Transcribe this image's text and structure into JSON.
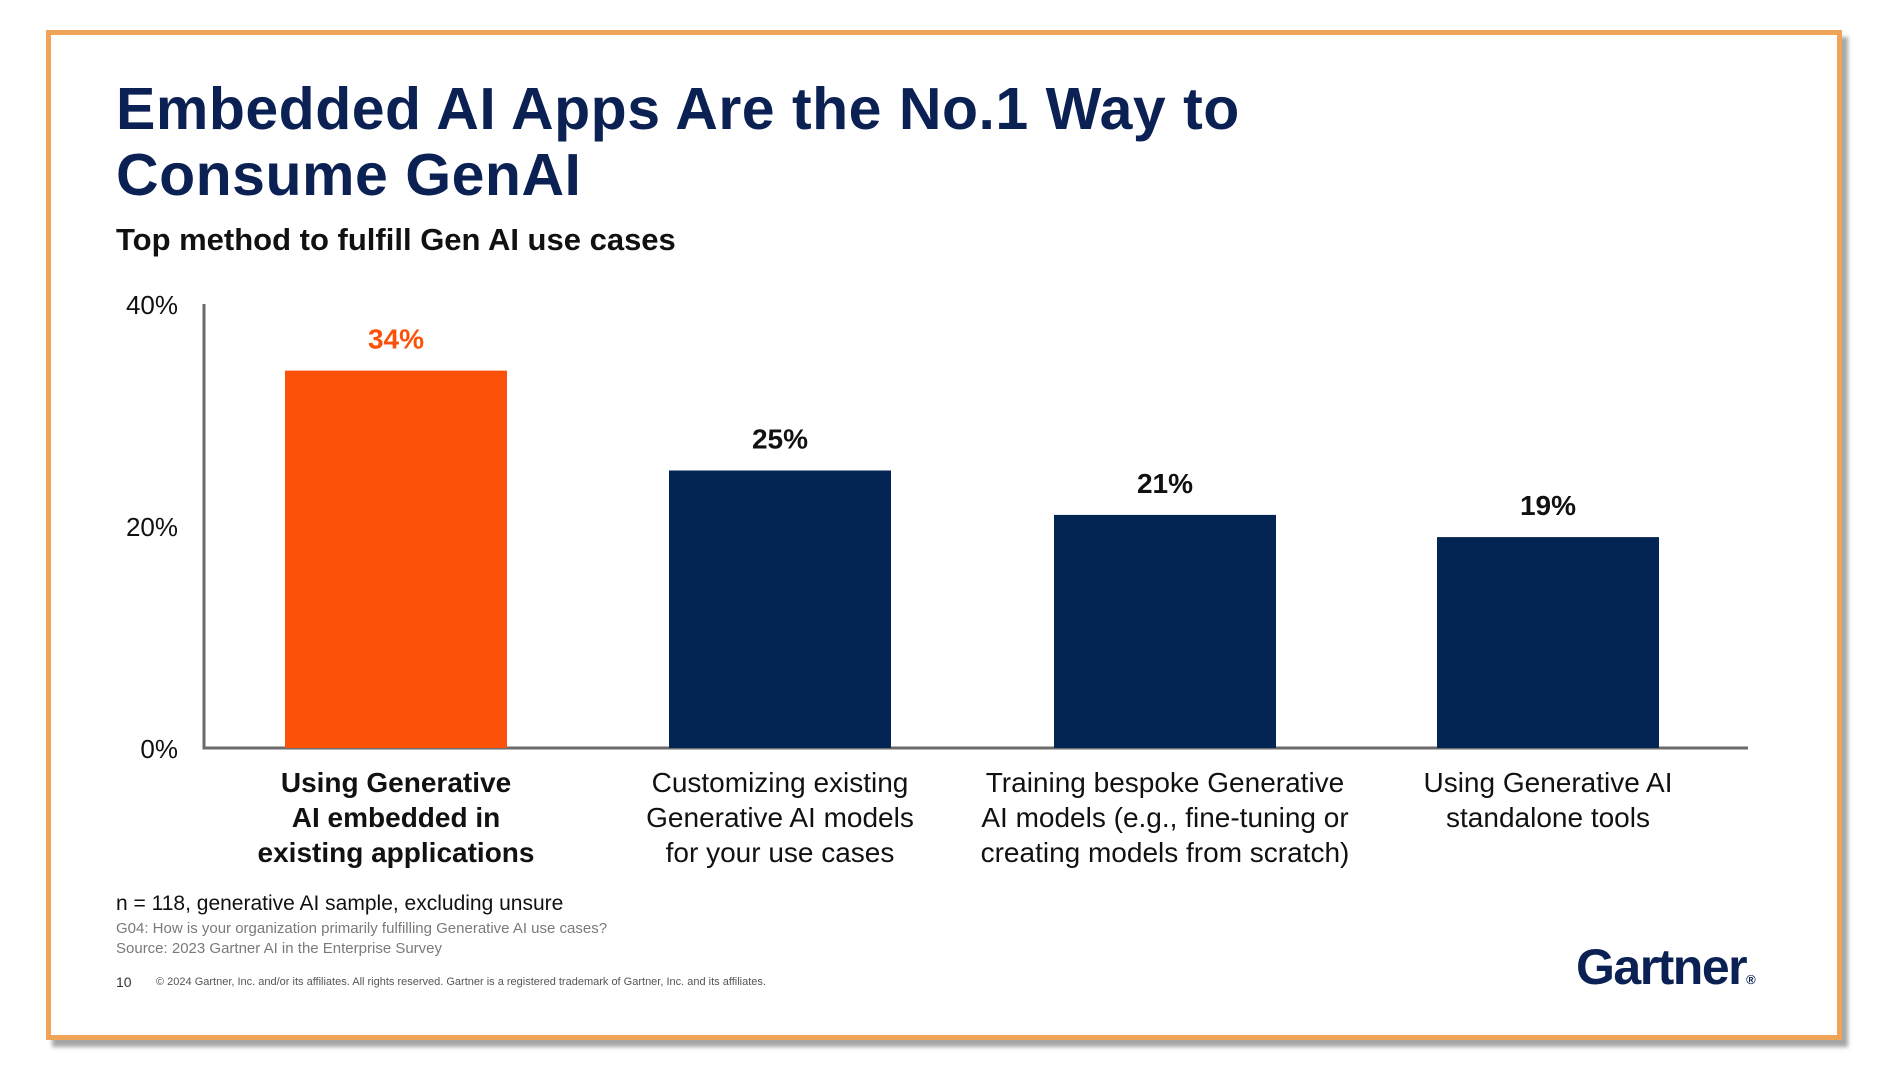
{
  "title_lines": [
    "Embedded AI Apps Are the No.1 Way to",
    "Consume GenAI"
  ],
  "subtitle": "Top method to fulfill Gen AI use cases",
  "colors": {
    "highlight": "#fc5108",
    "primary": "#022554",
    "frame": "#f0a457",
    "title": "#0b2153",
    "axis": "#6b6b6b"
  },
  "chart_data": {
    "type": "bar",
    "title": "Top method to fulfill Gen AI use cases",
    "xlabel": "",
    "ylabel": "",
    "ylim": [
      0,
      40
    ],
    "yticks": [
      0,
      20,
      40
    ],
    "ytick_labels": [
      "0%",
      "20%",
      "40%"
    ],
    "grid": false,
    "categories": [
      [
        "Using Generative",
        "AI embedded in",
        "existing applications"
      ],
      [
        "Customizing existing",
        "Generative AI models",
        "for your use cases"
      ],
      [
        "Training bespoke Generative",
        "AI models (e.g., fine-tuning or",
        "creating models from scratch)"
      ],
      [
        "Using Generative AI",
        "standalone tools"
      ]
    ],
    "values": [
      34,
      25,
      21,
      19
    ],
    "data_labels": [
      "34%",
      "25%",
      "21%",
      "19%"
    ],
    "highlighted_index": 0
  },
  "footnotes": {
    "sample": "n = 118, generative AI sample, excluding unsure",
    "question": "G04: How is your organization primarily fulfilling Generative AI use cases?",
    "source": "Source: 2023 Gartner AI in the Enterprise Survey"
  },
  "page_number": "10",
  "copyright": "© 2024 Gartner, Inc. and/or its affiliates. All rights reserved. Gartner is a registered trademark of Gartner, Inc. and its affiliates.",
  "logo": {
    "text": "Gartner",
    "mark": "®"
  }
}
